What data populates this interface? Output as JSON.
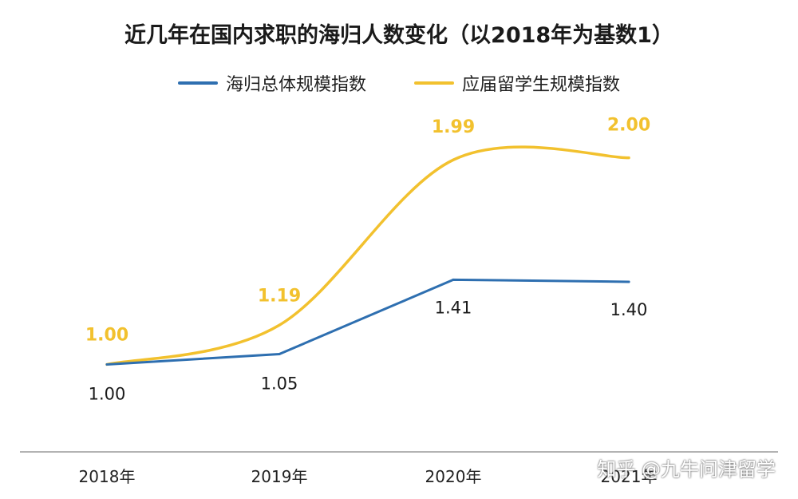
{
  "chart_data": {
    "type": "line",
    "title": "近几年在国内求职的海归人数变化（以2018年为基数1）",
    "categories": [
      "2018年",
      "2019年",
      "2020年",
      "2021年"
    ],
    "series": [
      {
        "name": "海归总体规模指数",
        "values": [
          1.0,
          1.05,
          1.41,
          1.4
        ],
        "labels": [
          "1.00",
          "1.05",
          "1.41",
          "1.40"
        ],
        "color": "#2e6fb0"
      },
      {
        "name": "应届留学生规模指数",
        "values": [
          1.0,
          1.19,
          1.99,
          2.0
        ],
        "labels": [
          "1.00",
          "1.19",
          "1.99",
          "2.00"
        ],
        "color": "#f2c12e"
      }
    ],
    "ylim": [
      0.6,
      2.3
    ],
    "grid": false,
    "legend_position": "top"
  },
  "watermark": "知乎 @九牛问津留学"
}
